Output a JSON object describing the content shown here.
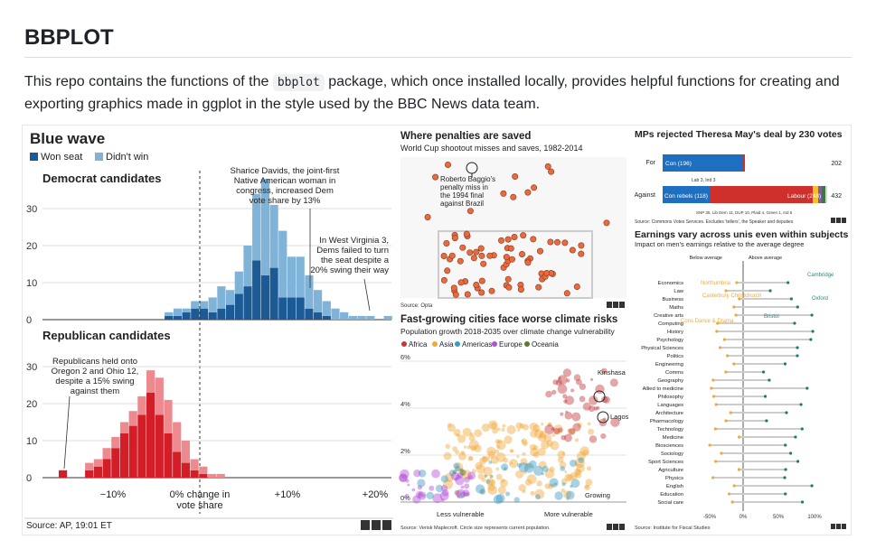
{
  "header": {
    "title": "BBPLOT",
    "intro_before": "This repo contains the functions of the ",
    "intro_code": "bbplot",
    "intro_after": " package, which once installed locally, provides helpful functions for creating and exporting graphics made in ggplot in the style used by the BBC News data team."
  },
  "bluewave": {
    "title": "Blue wave",
    "legend": [
      "Won seat",
      "Didn't win"
    ],
    "dem_title": "Democrat candidates",
    "rep_title": "Republican candidates",
    "annot_davids": [
      "Sharice Davids, the joint-first",
      "Native American woman in",
      "congress, increased Dem",
      "vote share by 13%"
    ],
    "annot_wv": [
      "In West Virginia 3,",
      "Dems failed to turn",
      "the seat despite a",
      "20% swing their way"
    ],
    "annot_rep": [
      "Republicans held onto",
      "Oregon 2 and Ohio 12,",
      "despite a 15% swing",
      "against them"
    ],
    "xticks": [
      "−10%",
      "0% change in",
      "vote share",
      "+10%",
      "+20%"
    ],
    "source": "Source: AP, 19:01 ET",
    "logo": "BBC"
  },
  "penalties": {
    "title": "Where penalties are saved",
    "subtitle": "World Cup shootout misses and saves, 1982-2014",
    "annot": [
      "Roberto Baggio's",
      "penalty miss in",
      "the 1994 final",
      "against Brazil"
    ],
    "source": "Source: Opta"
  },
  "cities": {
    "title": "Fast-growing cities face worse climate risks",
    "subtitle": "Population growth 2018-2035 over climate change vulnerability",
    "legend": [
      "Africa",
      "Asia",
      "Americas",
      "Europe",
      "Oceania"
    ],
    "yticks": [
      "6%",
      "4%",
      "2%",
      "0%"
    ],
    "labels": [
      "Kinshasa",
      "Lagos",
      "Growing"
    ],
    "xlabels": [
      "Less vulnerable",
      "More vulnerable"
    ],
    "source": "Source: Verisk Maplecroft. Circle size represents current population."
  },
  "mps": {
    "title": "MPs rejected Theresa May's deal by 230 votes",
    "for_label": "For",
    "against_label": "Against",
    "for_con": "Con (196)",
    "for_total": "202",
    "for_note": "Lab 3, Ind 3",
    "against_con": "Con rebels (118)",
    "against_lab": "Labour (248)",
    "against_total": "432",
    "against_note": "SNP 35, Lib Dem 11, DUP 10, Plaid 4, Green 1, Ind 5",
    "source": "Source: Commons Votes Services. Excludes 'tellers', the Speaker and deputies"
  },
  "earnings": {
    "title": "Earnings vary across unis even within subjects",
    "subtitle": "Impact on men's earnings relative to the average degree",
    "below": "Below average",
    "above": "Above average",
    "subjects": [
      "Economics",
      "Law",
      "Business",
      "Maths",
      "Creative arts",
      "Computing",
      "History",
      "Psychology",
      "Physical Sciences",
      "Politics",
      "Engineering",
      "Comms",
      "Geography",
      "Allied to medicine",
      "Philosophy",
      "Languages",
      "Architecture",
      "Pharmacology",
      "Technology",
      "Medicine",
      "Biosciences",
      "Sociology",
      "Sport Sciences",
      "Agriculture",
      "Physics",
      "English",
      "Education",
      "Social care"
    ],
    "unis": [
      "Cambridge",
      "Northumbria",
      "Oxford",
      "Canterbury Christchurch",
      "Bristol",
      "Cons Dance & Drama"
    ],
    "xticks": [
      "-50%",
      "0%",
      "50%",
      "100%"
    ],
    "source": "Source: Institute for Fiscal Studies"
  },
  "chart_data": [
    {
      "type": "bar",
      "title": "Democrat candidates",
      "series": [
        {
          "name": "Won seat",
          "values": [
            0,
            0,
            0,
            1,
            1,
            2,
            3,
            3,
            2,
            3,
            4,
            7,
            9,
            16,
            12,
            14,
            6,
            6,
            6,
            3,
            2,
            1,
            0,
            0,
            0,
            0,
            0,
            0,
            0
          ]
        },
        {
          "name": "Didn't win",
          "values": [
            0,
            0,
            0,
            1,
            2,
            1,
            2,
            2,
            4,
            6,
            4,
            6,
            11,
            18,
            26,
            17,
            18,
            11,
            11,
            9,
            6,
            4,
            3,
            2,
            1,
            1,
            1,
            0,
            1
          ]
        }
      ],
      "ylim": [
        0,
        35
      ]
    },
    {
      "type": "bar",
      "title": "Republican candidates",
      "series": [
        {
          "name": "Won seat",
          "values": [
            2,
            0,
            0,
            2,
            3,
            5,
            8,
            12,
            14,
            17,
            23,
            17,
            12,
            7,
            4,
            2,
            1,
            0,
            0
          ]
        },
        {
          "name": "Didn't win",
          "values": [
            0,
            0,
            0,
            2,
            2,
            3,
            3,
            3,
            4,
            5,
            6,
            10,
            9,
            8,
            6,
            3,
            2,
            1,
            1
          ]
        }
      ],
      "ylim": [
        0,
        35
      ]
    },
    {
      "type": "bar",
      "title": "MPs rejected Theresa May's deal by 230 votes",
      "categories": [
        "For",
        "Against"
      ],
      "series": [
        {
          "name": "Con",
          "values": [
            196,
            118
          ]
        },
        {
          "name": "Labour",
          "values": [
            3,
            248
          ]
        },
        {
          "name": "Other",
          "values": [
            3,
            66
          ]
        }
      ]
    }
  ],
  "colors": {
    "dem_won": "#1b5a94",
    "dem_lost": "#7fb3d8",
    "rep_won": "#d31e27",
    "rep_lost": "#ee8a8f",
    "africa": "#c43a3a",
    "asia": "#f2a93b",
    "americas": "#3b9bc4",
    "europe": "#b34fd6",
    "oceania": "#5a7a2d"
  }
}
